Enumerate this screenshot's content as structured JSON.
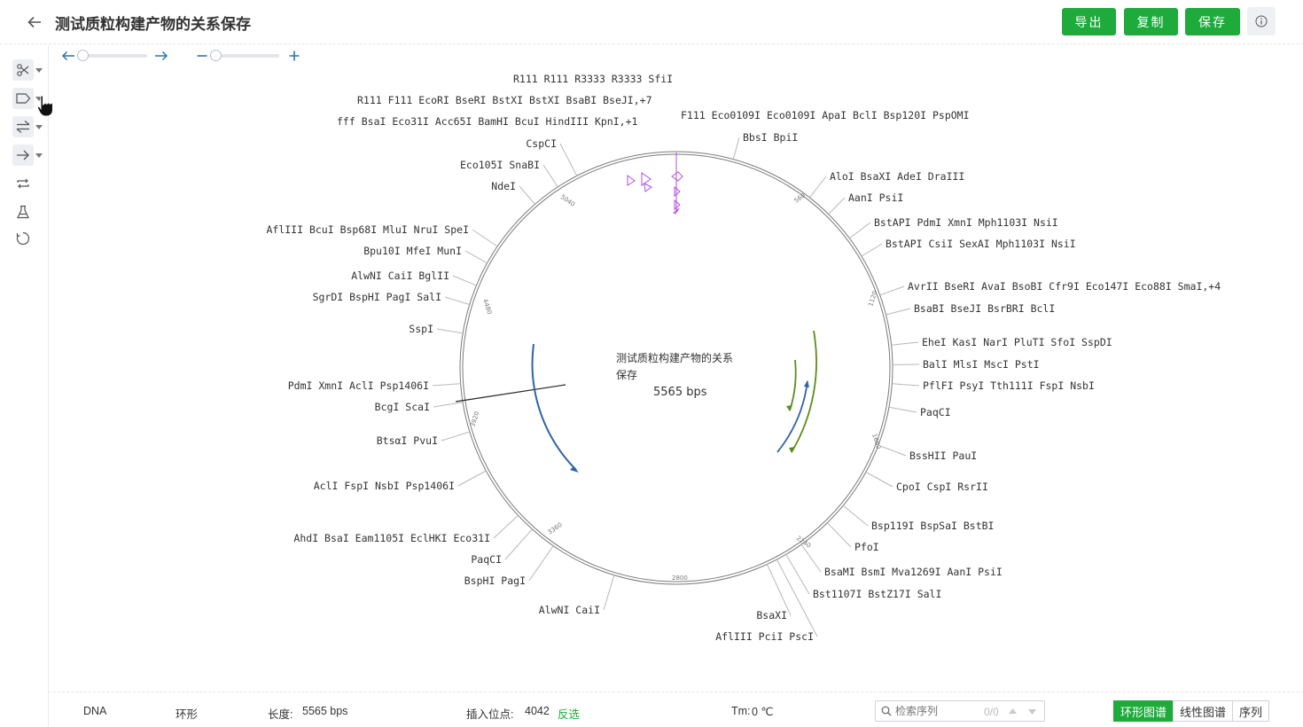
{
  "header": {
    "title": "测试质粒构建产物的关系保存",
    "export_label": "导出",
    "copy_label": "复制",
    "save_label": "保存"
  },
  "map": {
    "name_line1": "测试质粒构建产物的关系",
    "name_line2": "保存",
    "length_text": "5565 bps",
    "ticks": [
      "560",
      "1120",
      "1680",
      "2240",
      "2800",
      "3360",
      "3920",
      "4480",
      "5040"
    ],
    "feature_labels": {
      "r111": [
        "R111",
        "R111",
        "R3333",
        "R3333"
      ],
      "sfil": "SfiI",
      "r111b": [
        "R111",
        "F111"
      ],
      "ecori_line": [
        "EcoRI",
        "BseRI",
        "BstXI",
        "BstXI",
        "BsaBI",
        "BseJI",
        ",+7"
      ],
      "fff": "fff",
      "bsai_line": [
        "BsaI",
        "Eco31I",
        "Acc65I",
        "BamHI",
        "BcuI",
        "HindIII",
        "KpnI",
        ",+1"
      ],
      "f111": "F111",
      "eco0109_line": [
        "Eco0109I",
        "Eco0109I",
        "ApaI",
        "BclI",
        "Bsp120I",
        "PspOMI"
      ]
    },
    "site_labels": [
      {
        "parts": [
          [
            "CspCI",
            1
          ]
        ]
      },
      {
        "parts": [
          [
            "Eco105I",
            1
          ],
          [
            "SnaBI",
            1
          ]
        ]
      },
      {
        "parts": [
          [
            "NdeI",
            1
          ]
        ]
      },
      {
        "parts": [
          [
            "BbsI",
            1
          ],
          [
            "BpiI",
            1
          ]
        ]
      },
      {
        "parts": [
          [
            "AloI",
            1
          ],
          [
            "BsaXI",
            0
          ],
          [
            "AdeI",
            1
          ],
          [
            "DraIII",
            1
          ]
        ]
      },
      {
        "parts": [
          [
            "AanI",
            0
          ],
          [
            "PsiI",
            0
          ]
        ]
      },
      {
        "parts": [
          [
            "BstAPI",
            0
          ],
          [
            "PdmI",
            0
          ],
          [
            "XmnI",
            0
          ],
          [
            "Mph1103I",
            0
          ],
          [
            "NsiI",
            0
          ]
        ]
      },
      {
        "parts": [
          [
            "BstAPI",
            0
          ],
          [
            "CsiI",
            1
          ],
          [
            "SexAI",
            1
          ],
          [
            "Mph1103I",
            0
          ],
          [
            "NsiI",
            0
          ]
        ]
      },
      {
        "parts": [
          [
            "AvrII",
            1
          ],
          [
            "BseRI",
            0
          ],
          [
            "AvaI",
            1
          ],
          [
            "BsoBI",
            1
          ],
          [
            "Cfr9I",
            1
          ],
          [
            "Eco147I",
            1
          ],
          [
            "Eco88I",
            1
          ],
          [
            "SmaI",
            1
          ],
          [
            ",+4",
            0
          ]
        ]
      },
      {
        "parts": [
          [
            "BsaBI",
            0
          ],
          [
            "BseJI",
            0
          ],
          [
            "BsrBRI",
            0
          ],
          [
            "BclI",
            0
          ]
        ]
      },
      {
        "parts": [
          [
            "EheI",
            1
          ],
          [
            "KasI",
            1
          ],
          [
            "NarI",
            1
          ],
          [
            "PluTI",
            1
          ],
          [
            "SfoI",
            1
          ],
          [
            "SspDI",
            1
          ]
        ]
      },
      {
        "parts": [
          [
            "BalI",
            1
          ],
          [
            "MlsI",
            1
          ],
          [
            "MscI",
            1
          ],
          [
            "PstI",
            0
          ]
        ]
      },
      {
        "parts": [
          [
            "PflFI",
            1
          ],
          [
            "PsyI",
            1
          ],
          [
            "Tth111I",
            1
          ],
          [
            "FspI",
            0
          ],
          [
            "NsbI",
            0
          ]
        ]
      },
      {
        "parts": [
          [
            "PaqCI",
            0
          ]
        ]
      },
      {
        "parts": [
          [
            "BssHII",
            1
          ],
          [
            "PauI",
            1
          ]
        ]
      },
      {
        "parts": [
          [
            "CpoI",
            1
          ],
          [
            "CspI",
            1
          ],
          [
            "RsrII",
            1
          ]
        ]
      },
      {
        "parts": [
          [
            "Bsp119I",
            1
          ],
          [
            "BspSaI",
            1
          ],
          [
            "BstBI",
            1
          ]
        ]
      },
      {
        "parts": [
          [
            "PfoI",
            1
          ]
        ]
      },
      {
        "parts": [
          [
            "BsaMI",
            1
          ],
          [
            "BsmI",
            1
          ],
          [
            "Mva1269I",
            1
          ],
          [
            "AanI",
            0
          ],
          [
            "PsiI",
            0
          ]
        ]
      },
      {
        "parts": [
          [
            "Bst1107I",
            1
          ],
          [
            "BstZ17I",
            1
          ],
          [
            "SalI",
            0
          ]
        ]
      },
      {
        "parts": [
          [
            "BsaXI",
            0
          ]
        ]
      },
      {
        "parts": [
          [
            "AflIII",
            0
          ],
          [
            "PciI",
            1
          ],
          [
            "PscI",
            1
          ]
        ]
      },
      {
        "parts": [
          [
            "AlwNI",
            0
          ],
          [
            "CaiI",
            0
          ]
        ]
      },
      {
        "parts": [
          [
            "BspHI",
            0
          ],
          [
            "PagI",
            0
          ]
        ]
      },
      {
        "parts": [
          [
            "PaqCI",
            0
          ]
        ]
      },
      {
        "parts": [
          [
            "AhdI",
            1
          ],
          [
            "BsaI",
            0
          ],
          [
            "Eam1105I",
            1
          ],
          [
            "EclHKI",
            1
          ],
          [
            "Eco31I",
            0
          ]
        ]
      },
      {
        "parts": [
          [
            "AclI",
            0
          ],
          [
            "FspI",
            0
          ],
          [
            "NsbI",
            0
          ],
          [
            "Psp1406I",
            0
          ]
        ]
      },
      {
        "parts": [
          [
            "BtsαI",
            1
          ],
          [
            "PvuI",
            1
          ]
        ]
      },
      {
        "parts": [
          [
            "BcgI",
            1
          ],
          [
            "ScaI",
            1
          ]
        ]
      },
      {
        "parts": [
          [
            "PdmI",
            0
          ],
          [
            "XmnI",
            0
          ],
          [
            "AclI",
            0
          ],
          [
            "Psp1406I",
            0
          ]
        ]
      },
      {
        "parts": [
          [
            "SspI",
            1
          ]
        ]
      },
      {
        "parts": [
          [
            "SgrDI",
            1
          ],
          [
            "BspHI",
            0
          ],
          [
            "PagI",
            0
          ],
          [
            "SalI",
            0
          ]
        ]
      },
      {
        "parts": [
          [
            "AlwNI",
            0
          ],
          [
            "CaiI",
            0
          ],
          [
            "BglII",
            1
          ]
        ]
      },
      {
        "parts": [
          [
            "Bpu10I",
            1
          ],
          [
            "MfeI",
            1
          ],
          [
            "MunI",
            1
          ]
        ]
      },
      {
        "parts": [
          [
            "AflIII",
            0
          ],
          [
            "BcuI",
            0
          ],
          [
            "Bsp68I",
            1
          ],
          [
            "MluI",
            1
          ],
          [
            "NruI",
            1
          ],
          [
            "SpeI",
            0
          ]
        ]
      }
    ]
  },
  "status": {
    "type": "DNA",
    "topology": "环形",
    "length_label": "长度:",
    "length_value": "5565 bps",
    "insert_label": "插入位点:",
    "insert_value": "4042",
    "invert_label": "反选",
    "tm_label": "Tm:",
    "tm_value": "0 ℃",
    "search_placeholder": "检索序列",
    "search_count": "0/0"
  },
  "view_tabs": [
    "环形图谱",
    "线性图谱",
    "序列"
  ],
  "colors": {
    "accent": "#1eab3c",
    "feature_purple": "#8f15d6",
    "arrow_blue": "#2e63a6",
    "arrow_green": "#5b8c1a"
  }
}
